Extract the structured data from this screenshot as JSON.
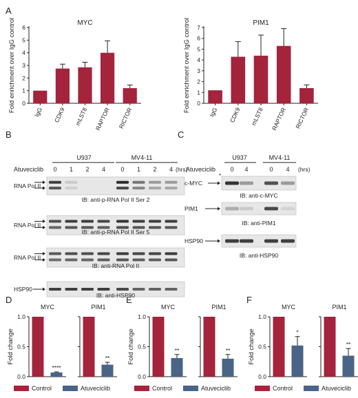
{
  "colors": {
    "red": "#a4243b",
    "blue": "#4a6487",
    "blot_bg": "#e7e7e7",
    "band": "#2b2b2b"
  },
  "panel_letters": {
    "A": "A",
    "B": "B",
    "C": "C",
    "D": "D",
    "E": "E",
    "F": "F"
  },
  "panel_b": {
    "groups": [
      "U937",
      "MV4-11"
    ],
    "drug_label": "Atuveciclib",
    "times": [
      "0",
      "1",
      "2",
      "4",
      "0",
      "1",
      "2",
      "4"
    ],
    "unit": "(hrs)",
    "blots": [
      {
        "left_label": "RNA Pol II",
        "arrows": 2,
        "caption": "IB: anti-p-RNA Pol II Ser 2"
      },
      {
        "left_label": "RNA Pol II",
        "arrows": 2,
        "caption": "IB: anti-p-RNA Pol II Ser 5"
      },
      {
        "left_label": "RNA Pol II",
        "arrows": 2,
        "caption": "IB: anti-RNA Pol II"
      },
      {
        "left_label": "HSP90",
        "arrows": 1,
        "caption": "IB: anti-HSP90"
      }
    ]
  },
  "panel_c": {
    "groups": [
      "U937",
      "MV4-11"
    ],
    "drug_label": "Atuveciclib",
    "times": [
      "0",
      "4",
      "0",
      "4"
    ],
    "unit": "(hrs)",
    "blots": [
      {
        "left_label": "c-MYC",
        "star": "*",
        "caption": "IB: anti-c-MYC"
      },
      {
        "left_label": "PIM1",
        "caption": "IB: anti-PIM1"
      },
      {
        "left_label": "HSP90",
        "caption": "IB: anti-HSP90"
      }
    ]
  },
  "legend": {
    "control": "Control",
    "treated": "Atuveciclib"
  },
  "chart_data": [
    {
      "id": "A-MYC",
      "type": "bar",
      "title": "MYC",
      "ylabel": "Fold enrichment over IgG control",
      "categories": [
        "IgG",
        "CDK9",
        "mLST8",
        "RAPTOR",
        "RICTOR"
      ],
      "values": [
        1.0,
        2.75,
        2.85,
        4.0,
        1.2
      ],
      "errors": [
        0,
        0.35,
        0.4,
        0.95,
        0.25
      ],
      "ylim": [
        0,
        6
      ],
      "yticks": [
        "0",
        "1",
        "2",
        "3",
        "4",
        "5",
        "6"
      ],
      "color": "#a4243b"
    },
    {
      "id": "A-PIM1",
      "type": "bar",
      "title": "PIM1",
      "ylabel": "Fold enrichment over IgG control",
      "categories": [
        "IgG",
        "CDK9",
        "mLST8",
        "RAPTOR",
        "RICTOR"
      ],
      "values": [
        1.2,
        4.3,
        4.4,
        5.3,
        1.4
      ],
      "errors": [
        0,
        1.4,
        1.9,
        1.6,
        0.3
      ],
      "ylim": [
        0,
        7
      ],
      "yticks": [
        "0",
        "1",
        "2",
        "3",
        "4",
        "5",
        "6",
        "7"
      ],
      "color": "#a4243b"
    },
    {
      "id": "D",
      "type": "bar",
      "ylabel": "Fold change",
      "ylim": [
        0,
        1.0
      ],
      "yticks": [
        "0.0",
        "0.5",
        "1.0"
      ],
      "groups": [
        {
          "title": "MYC",
          "values": [
            1.0,
            0.07
          ],
          "errors": [
            0,
            0.01
          ],
          "sig": "****"
        },
        {
          "title": "PIM1",
          "values": [
            1.0,
            0.2
          ],
          "errors": [
            0,
            0.04
          ],
          "sig": "**"
        }
      ]
    },
    {
      "id": "E",
      "type": "bar",
      "ylabel": "Fold change",
      "ylim": [
        0,
        1.0
      ],
      "yticks": [
        "0.0",
        "0.5",
        "1.0"
      ],
      "groups": [
        {
          "title": "MYC",
          "values": [
            1.0,
            0.31
          ],
          "errors": [
            0,
            0.06
          ],
          "sig": "**"
        },
        {
          "title": "PIM1",
          "values": [
            1.0,
            0.3
          ],
          "errors": [
            0,
            0.07
          ],
          "sig": "**"
        }
      ]
    },
    {
      "id": "F",
      "type": "bar",
      "ylabel": "Fold change",
      "ylim": [
        0,
        1.0
      ],
      "yticks": [
        "0.0",
        "0.5",
        "1.0"
      ],
      "groups": [
        {
          "title": "MYC",
          "values": [
            1.0,
            0.52
          ],
          "errors": [
            0,
            0.15
          ],
          "sig": "*"
        },
        {
          "title": "PIM1",
          "values": [
            1.0,
            0.35
          ],
          "errors": [
            0,
            0.12
          ],
          "sig": "**"
        }
      ]
    }
  ]
}
